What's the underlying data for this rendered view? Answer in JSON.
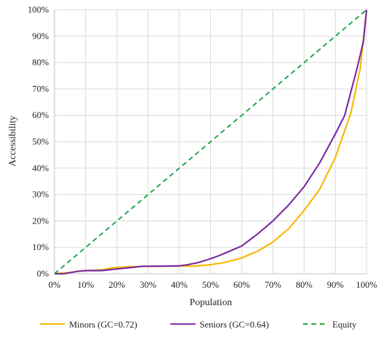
{
  "chart_data": {
    "type": "line",
    "title": "",
    "xlabel": "Population",
    "ylabel": "Accessibility",
    "xlim": [
      0,
      100
    ],
    "ylim": [
      0,
      100
    ],
    "x_ticks": [
      "0%",
      "10%",
      "20%",
      "30%",
      "40%",
      "50%",
      "60%",
      "70%",
      "80%",
      "90%",
      "100%"
    ],
    "y_ticks": [
      "0%",
      "10%",
      "20%",
      "30%",
      "40%",
      "50%",
      "60%",
      "70%",
      "80%",
      "90%",
      "100%"
    ],
    "grid": true,
    "legend_position": "bottom",
    "series": [
      {
        "name": "Minors (GC=0.72)",
        "color": "#f5b800",
        "dash": "solid",
        "points": [
          [
            0,
            0
          ],
          [
            5,
            0.5
          ],
          [
            8,
            1
          ],
          [
            12,
            1.3
          ],
          [
            16,
            1.6
          ],
          [
            18,
            2.2
          ],
          [
            21,
            2.5
          ],
          [
            25,
            2.7
          ],
          [
            30,
            2.8
          ],
          [
            40,
            2.9
          ],
          [
            45,
            2.9
          ],
          [
            50,
            3.4
          ],
          [
            55,
            4.4
          ],
          [
            60,
            6
          ],
          [
            65,
            8.5
          ],
          [
            70,
            12
          ],
          [
            75,
            17
          ],
          [
            80,
            24
          ],
          [
            85,
            32
          ],
          [
            90,
            44
          ],
          [
            95,
            61
          ],
          [
            98,
            78
          ],
          [
            100,
            100
          ]
        ]
      },
      {
        "name": "Seniors (GC=0.64)",
        "color": "#7b2aa0",
        "dash": "solid",
        "points": [
          [
            0,
            0
          ],
          [
            3,
            0
          ],
          [
            6,
            0.6
          ],
          [
            8,
            1
          ],
          [
            10,
            1.2
          ],
          [
            15,
            1.2
          ],
          [
            20,
            1.8
          ],
          [
            25,
            2.4
          ],
          [
            28,
            2.8
          ],
          [
            35,
            2.9
          ],
          [
            40,
            3
          ],
          [
            43,
            3.5
          ],
          [
            46,
            4.2
          ],
          [
            49,
            5.3
          ],
          [
            52,
            6.5
          ],
          [
            55,
            8
          ],
          [
            60,
            10.5
          ],
          [
            65,
            15
          ],
          [
            70,
            20
          ],
          [
            75,
            26
          ],
          [
            80,
            33
          ],
          [
            85,
            42
          ],
          [
            90,
            53
          ],
          [
            93,
            60
          ],
          [
            95,
            69
          ],
          [
            97,
            78
          ],
          [
            99,
            88
          ],
          [
            100,
            100
          ]
        ]
      },
      {
        "name": "Equity",
        "color": "#1aa64a",
        "dash": "dashed",
        "points": [
          [
            0,
            0
          ],
          [
            100,
            100
          ]
        ]
      }
    ]
  }
}
